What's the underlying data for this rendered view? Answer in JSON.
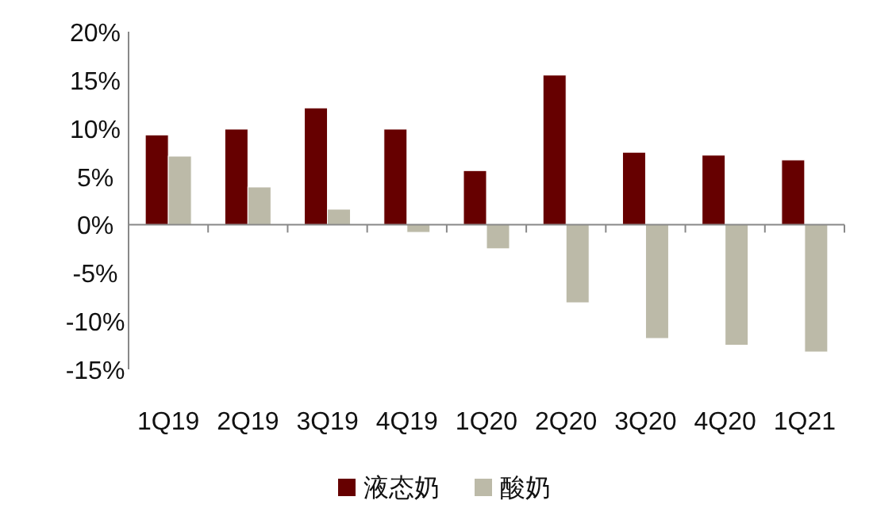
{
  "chart_data": {
    "type": "bar",
    "categories": [
      "1Q19",
      "2Q19",
      "3Q19",
      "4Q19",
      "1Q20",
      "2Q20",
      "3Q20",
      "4Q20",
      "1Q21"
    ],
    "series": [
      {
        "name": "液态奶",
        "color": "#660000",
        "values": [
          9.3,
          9.9,
          12.1,
          9.9,
          5.6,
          15.5,
          7.5,
          7.2,
          6.7
        ]
      },
      {
        "name": "酸奶",
        "color": "#bcbaa8",
        "values": [
          7.1,
          3.9,
          1.6,
          -0.8,
          -2.5,
          -8.1,
          -11.8,
          -12.5,
          -13.2
        ]
      }
    ],
    "ylim": [
      -15,
      20
    ],
    "yticks": [
      {
        "value": -15,
        "label": "-15%"
      },
      {
        "value": -10,
        "label": "-10%"
      },
      {
        "value": -5,
        "label": "-5%"
      },
      {
        "value": 0,
        "label": "0%"
      },
      {
        "value": 5,
        "label": "5%"
      },
      {
        "value": 10,
        "label": "10%"
      },
      {
        "value": 15,
        "label": "15%"
      },
      {
        "value": 20,
        "label": "20%"
      }
    ],
    "legend": "bottom"
  }
}
